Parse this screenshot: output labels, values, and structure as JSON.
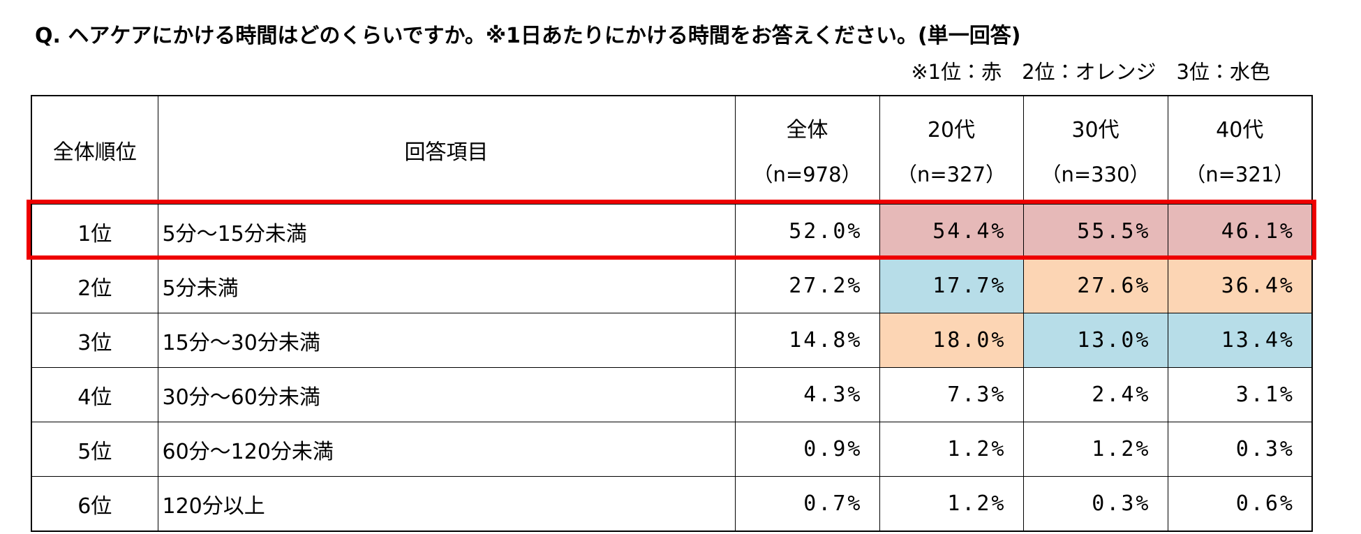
{
  "question": "Q. ヘアケアにかける時間はどのくらいですか。※1日あたりにかける時間をお答えください。(単一回答)",
  "note": "※1位：赤　2位：オレンジ　3位：水色",
  "table": {
    "headers": [
      {
        "label": "全体順位"
      },
      {
        "label": "回答項目"
      },
      {
        "label": "全体",
        "n": "（n=978）"
      },
      {
        "label": "20代",
        "n": "（n=327）"
      },
      {
        "label": "30代",
        "n": "（n=330）"
      },
      {
        "label": "40代",
        "n": "（n=321）"
      }
    ],
    "rows": [
      [
        {
          "text": "1位"
        },
        {
          "text": "5分～15分未満"
        },
        {
          "text": "52.0%"
        },
        {
          "text": "54.4%",
          "fill": "#e6b9b8"
        },
        {
          "text": "55.5%",
          "fill": "#e6b9b8"
        },
        {
          "text": "46.1%",
          "fill": "#e6b9b8"
        }
      ],
      [
        {
          "text": "2位"
        },
        {
          "text": "5分未満"
        },
        {
          "text": "27.2%"
        },
        {
          "text": "17.7%",
          "fill": "#b7dde8"
        },
        {
          "text": "27.6%",
          "fill": "#fcd5b4"
        },
        {
          "text": "36.4%",
          "fill": "#fcd5b4"
        }
      ],
      [
        {
          "text": "3位"
        },
        {
          "text": "15分～30分未満"
        },
        {
          "text": "14.8%"
        },
        {
          "text": "18.0%",
          "fill": "#fcd5b4"
        },
        {
          "text": "13.0%",
          "fill": "#b7dde8"
        },
        {
          "text": "13.4%",
          "fill": "#b7dde8"
        }
      ],
      [
        {
          "text": "4位"
        },
        {
          "text": "30分～60分未満"
        },
        {
          "text": "4.3%"
        },
        {
          "text": "7.3%"
        },
        {
          "text": "2.4%"
        },
        {
          "text": "3.1%"
        }
      ],
      [
        {
          "text": "5位"
        },
        {
          "text": "60分～120分未満"
        },
        {
          "text": "0.9%"
        },
        {
          "text": "1.2%"
        },
        {
          "text": "1.2%"
        },
        {
          "text": "0.3%"
        }
      ],
      [
        {
          "text": "6位"
        },
        {
          "text": "120分以上"
        },
        {
          "text": "0.7%"
        },
        {
          "text": "1.2%"
        },
        {
          "text": "0.3%"
        },
        {
          "text": "0.6%"
        }
      ]
    ]
  }
}
